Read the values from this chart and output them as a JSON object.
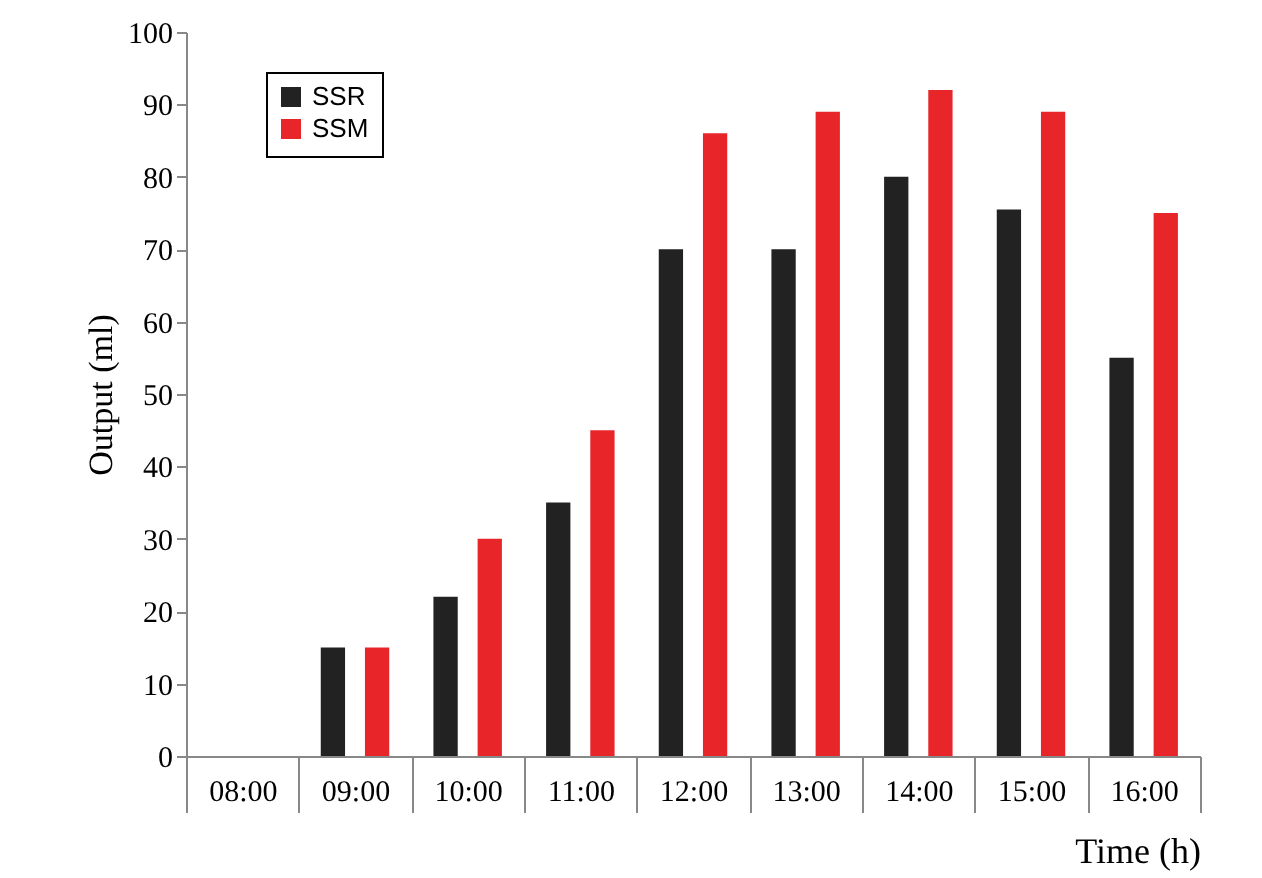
{
  "chart_data": {
    "type": "bar",
    "xlabel": "Time (h)",
    "ylabel": "Output (ml)",
    "categories": [
      "08:00",
      "09:00",
      "10:00",
      "11:00",
      "12:00",
      "13:00",
      "14:00",
      "15:00",
      "16:00"
    ],
    "series": [
      {
        "name": "SSR",
        "color": "#222222",
        "values": [
          null,
          15,
          22,
          35,
          70,
          70,
          80,
          75.5,
          55
        ]
      },
      {
        "name": "SSM",
        "color": "#e8262a",
        "values": [
          null,
          15,
          30,
          45,
          86,
          89,
          92,
          89,
          75
        ]
      }
    ],
    "ylim": [
      0,
      100
    ],
    "yticks": [
      0,
      10,
      20,
      30,
      40,
      50,
      60,
      70,
      80,
      90,
      100
    ],
    "grid": false,
    "legend": "top left"
  }
}
